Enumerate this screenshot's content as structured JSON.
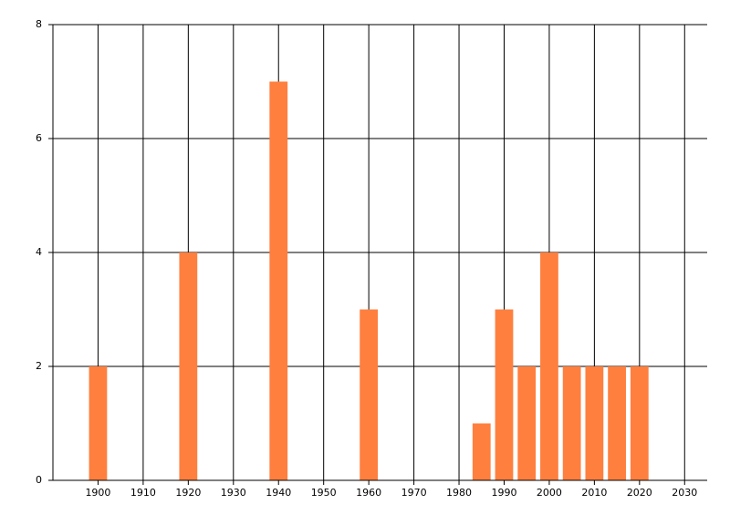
{
  "chart_data": {
    "type": "bar",
    "x": [
      1900,
      1920,
      1940,
      1960,
      1985,
      1990,
      1995,
      2000,
      2005,
      2010,
      2015,
      2020
    ],
    "values": [
      2,
      4,
      7,
      3,
      1,
      3,
      2,
      4,
      2,
      2,
      2,
      2
    ],
    "color": "#ff7f3f",
    "xlim": [
      1890,
      2035
    ],
    "xticks": [
      1900,
      1910,
      1920,
      1930,
      1940,
      1950,
      1960,
      1970,
      1980,
      1990,
      2000,
      2010,
      2020,
      2030
    ],
    "ylim": [
      0,
      8
    ],
    "yticks": [
      0,
      2,
      4,
      6,
      8
    ],
    "grid": true
  }
}
